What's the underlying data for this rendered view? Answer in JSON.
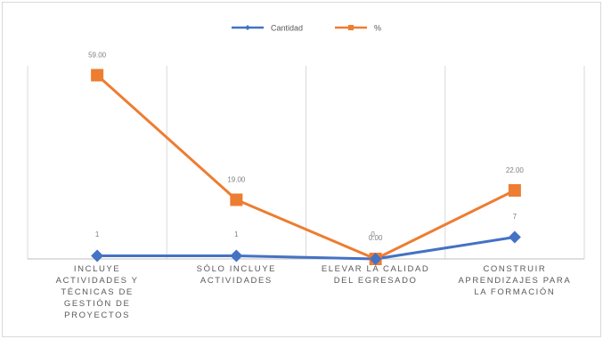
{
  "chart_data": {
    "type": "line",
    "categories": [
      [
        "INCLUYE",
        "ACTIVIDADES Y",
        "TÉCNICAS DE",
        "GESTIÓN DE",
        "PROYECTOS"
      ],
      [
        "SÓLO INCLUYE",
        "ACTIVIDADES"
      ],
      [
        "ELEVAR LA CALIDAD",
        "DEL EGRESADO"
      ],
      [
        "CONSTRUIR",
        "APRENDIZAJES PARA",
        "LA FORMACIÓN"
      ]
    ],
    "series": [
      {
        "name": "Cantidad",
        "values": [
          1,
          1,
          0,
          7
        ],
        "labels": [
          "1",
          "1",
          "0",
          "7"
        ],
        "color": "#4472c4",
        "marker": "diamond"
      },
      {
        "name": "%",
        "values": [
          59.0,
          19.0,
          0.0,
          22.0
        ],
        "labels": [
          "59.00",
          "19.00",
          "0.00",
          "22.00"
        ],
        "color": "#ed7d31",
        "marker": "square"
      }
    ],
    "ylim": [
      0,
      62
    ],
    "grid": "vertical",
    "legend": "top-center",
    "title": "",
    "xlabel": "",
    "ylabel": ""
  }
}
